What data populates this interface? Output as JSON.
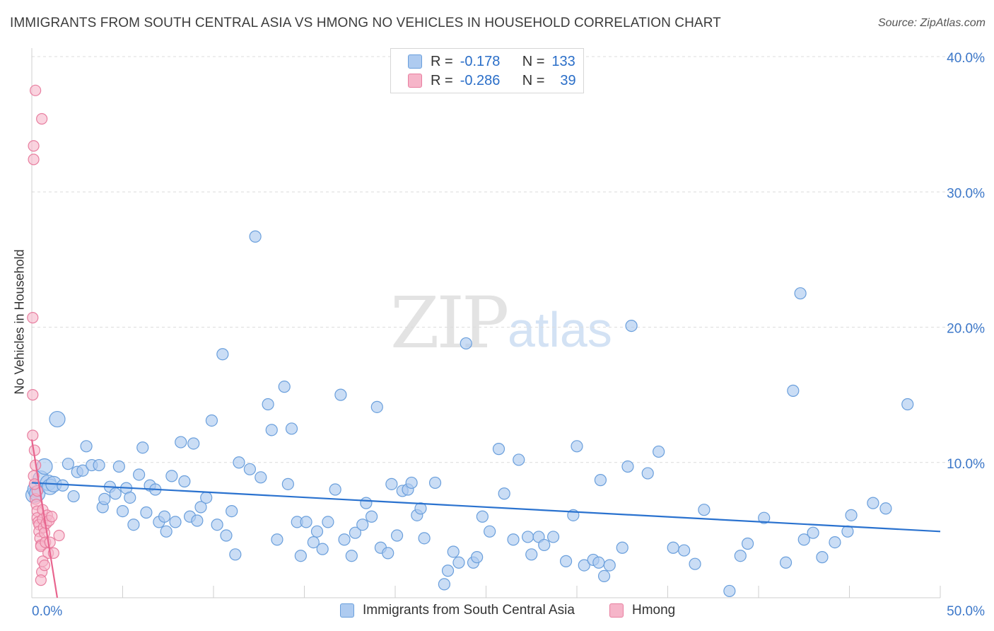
{
  "title": "IMMIGRANTS FROM SOUTH CENTRAL ASIA VS HMONG NO VEHICLES IN HOUSEHOLD CORRELATION CHART",
  "source": "Source: ZipAtlas.com",
  "watermark": {
    "zip": "ZIP",
    "atlas": "atlas"
  },
  "legend": {
    "rows": [
      {
        "r_label": "R =",
        "r_value": "-0.178",
        "n_label": "N =",
        "n_value": "133"
      },
      {
        "r_label": "R =",
        "r_value": "-0.286",
        "n_label": "N =",
        "n_value": "39"
      }
    ]
  },
  "colors": {
    "blue_fill": "#aecbf0",
    "blue_stroke": "#6a9fdc",
    "blue_line": "#2a72cf",
    "pink_fill": "#f6b5c9",
    "pink_stroke": "#e87fa0",
    "pink_line": "#e8648e",
    "axis_text": "#3d78c9",
    "grid": "#dcdcdc"
  },
  "chart_data": {
    "type": "scatter",
    "title": "IMMIGRANTS FROM SOUTH CENTRAL ASIA VS HMONG NO VEHICLES IN HOUSEHOLD CORRELATION CHART",
    "xlabel": "",
    "ylabel": "No Vehicles in Household",
    "xlim": [
      0,
      50
    ],
    "ylim": [
      0,
      40
    ],
    "x_tick_labels": [
      "0.0%",
      "50.0%"
    ],
    "y_ticks": [
      10,
      20,
      30,
      40
    ],
    "y_tick_labels": [
      "10.0%",
      "20.0%",
      "30.0%",
      "40.0%"
    ],
    "grid": true,
    "legend_position": "top-center",
    "series": [
      {
        "name": "Immigrants from South Central Asia",
        "color": "#aecbf0",
        "trend": {
          "x0": 0,
          "y0": 8.5,
          "x1": 50,
          "y1": 4.9
        },
        "points": [
          [
            0.1,
            7.6
          ],
          [
            0.2,
            8.0
          ],
          [
            0.3,
            7.7
          ],
          [
            0.5,
            8.8
          ],
          [
            0.7,
            9.7
          ],
          [
            0.9,
            8.5
          ],
          [
            1.0,
            8.2
          ],
          [
            1.2,
            8.4
          ],
          [
            1.4,
            13.2
          ],
          [
            1.7,
            8.3
          ],
          [
            2.0,
            9.9
          ],
          [
            2.3,
            7.5
          ],
          [
            2.5,
            9.3
          ],
          [
            2.8,
            9.4
          ],
          [
            3.0,
            11.2
          ],
          [
            3.3,
            9.8
          ],
          [
            3.7,
            9.8
          ],
          [
            3.9,
            6.7
          ],
          [
            4.0,
            7.3
          ],
          [
            4.3,
            8.2
          ],
          [
            4.6,
            7.7
          ],
          [
            4.8,
            9.7
          ],
          [
            5.0,
            6.4
          ],
          [
            5.2,
            8.1
          ],
          [
            5.4,
            7.4
          ],
          [
            5.6,
            5.4
          ],
          [
            5.9,
            9.1
          ],
          [
            6.1,
            11.1
          ],
          [
            6.3,
            6.3
          ],
          [
            6.5,
            8.3
          ],
          [
            6.8,
            8.0
          ],
          [
            7.0,
            5.6
          ],
          [
            7.3,
            6.0
          ],
          [
            7.4,
            4.9
          ],
          [
            7.7,
            9.0
          ],
          [
            7.9,
            5.6
          ],
          [
            8.2,
            11.5
          ],
          [
            8.4,
            8.6
          ],
          [
            8.7,
            6.0
          ],
          [
            8.9,
            11.4
          ],
          [
            9.1,
            5.7
          ],
          [
            9.3,
            6.7
          ],
          [
            9.6,
            7.4
          ],
          [
            9.9,
            13.1
          ],
          [
            10.2,
            5.4
          ],
          [
            10.5,
            18.0
          ],
          [
            10.7,
            4.6
          ],
          [
            11.0,
            6.4
          ],
          [
            11.2,
            3.2
          ],
          [
            11.4,
            10.0
          ],
          [
            12.0,
            9.5
          ],
          [
            12.3,
            26.7
          ],
          [
            12.6,
            8.9
          ],
          [
            13.0,
            14.3
          ],
          [
            13.2,
            12.4
          ],
          [
            13.5,
            4.3
          ],
          [
            13.9,
            15.6
          ],
          [
            14.1,
            8.4
          ],
          [
            14.3,
            12.5
          ],
          [
            14.6,
            5.6
          ],
          [
            14.8,
            3.1
          ],
          [
            15.1,
            5.6
          ],
          [
            15.5,
            4.1
          ],
          [
            15.7,
            4.9
          ],
          [
            16.0,
            3.6
          ],
          [
            16.3,
            5.6
          ],
          [
            16.7,
            8.0
          ],
          [
            17.0,
            15.0
          ],
          [
            17.2,
            4.3
          ],
          [
            17.6,
            3.1
          ],
          [
            17.8,
            4.8
          ],
          [
            18.2,
            5.4
          ],
          [
            18.4,
            7.0
          ],
          [
            18.7,
            6.0
          ],
          [
            19.0,
            14.1
          ],
          [
            19.2,
            3.7
          ],
          [
            19.6,
            3.3
          ],
          [
            19.8,
            8.4
          ],
          [
            20.1,
            4.6
          ],
          [
            20.4,
            7.9
          ],
          [
            20.7,
            8.0
          ],
          [
            20.9,
            8.5
          ],
          [
            21.2,
            6.1
          ],
          [
            21.4,
            6.6
          ],
          [
            21.6,
            4.4
          ],
          [
            22.2,
            8.5
          ],
          [
            22.7,
            1.0
          ],
          [
            22.9,
            2.0
          ],
          [
            23.2,
            3.4
          ],
          [
            23.5,
            2.6
          ],
          [
            23.9,
            18.8
          ],
          [
            24.3,
            2.6
          ],
          [
            24.5,
            3.0
          ],
          [
            24.8,
            6.0
          ],
          [
            25.2,
            4.9
          ],
          [
            25.7,
            11.0
          ],
          [
            26.0,
            7.7
          ],
          [
            26.5,
            4.3
          ],
          [
            26.8,
            10.2
          ],
          [
            27.3,
            4.5
          ],
          [
            27.5,
            3.2
          ],
          [
            27.9,
            4.5
          ],
          [
            28.2,
            3.9
          ],
          [
            28.7,
            4.5
          ],
          [
            29.4,
            2.7
          ],
          [
            29.8,
            6.1
          ],
          [
            30.0,
            11.2
          ],
          [
            30.4,
            2.4
          ],
          [
            30.9,
            2.8
          ],
          [
            31.2,
            2.6
          ],
          [
            31.3,
            8.7
          ],
          [
            31.5,
            1.6
          ],
          [
            31.8,
            2.4
          ],
          [
            32.5,
            3.7
          ],
          [
            32.8,
            9.7
          ],
          [
            33.0,
            20.1
          ],
          [
            33.9,
            9.2
          ],
          [
            34.5,
            10.8
          ],
          [
            35.3,
            3.7
          ],
          [
            35.9,
            3.5
          ],
          [
            36.5,
            2.5
          ],
          [
            37.0,
            6.5
          ],
          [
            38.4,
            0.5
          ],
          [
            39.0,
            3.1
          ],
          [
            39.4,
            4.0
          ],
          [
            40.3,
            5.9
          ],
          [
            41.5,
            2.6
          ],
          [
            41.9,
            15.3
          ],
          [
            42.3,
            22.5
          ],
          [
            42.5,
            4.3
          ],
          [
            43.0,
            4.8
          ],
          [
            43.5,
            3.0
          ],
          [
            44.2,
            4.1
          ],
          [
            44.9,
            4.9
          ],
          [
            45.1,
            6.1
          ],
          [
            46.3,
            7.0
          ],
          [
            47.0,
            6.6
          ],
          [
            48.2,
            14.3
          ]
        ]
      },
      {
        "name": "Hmong",
        "color": "#f6b5c9",
        "trend": {
          "x0": 0,
          "y0": 11.7,
          "x1": 1.4,
          "y1": 0
        },
        "points": [
          [
            0.05,
            20.7
          ],
          [
            0.05,
            15.0
          ],
          [
            0.05,
            12.0
          ],
          [
            0.1,
            33.4
          ],
          [
            0.1,
            32.4
          ],
          [
            0.15,
            10.9
          ],
          [
            0.2,
            37.5
          ],
          [
            0.2,
            9.8
          ],
          [
            0.1,
            9.0
          ],
          [
            0.2,
            7.3
          ],
          [
            0.25,
            6.9
          ],
          [
            0.3,
            6.4
          ],
          [
            0.3,
            5.9
          ],
          [
            0.35,
            5.6
          ],
          [
            0.4,
            5.4
          ],
          [
            0.4,
            4.9
          ],
          [
            0.45,
            4.4
          ],
          [
            0.5,
            3.9
          ],
          [
            0.5,
            3.8
          ],
          [
            0.55,
            35.4
          ],
          [
            0.6,
            6.5
          ],
          [
            0.6,
            5.8
          ],
          [
            0.65,
            5.2
          ],
          [
            0.7,
            4.8
          ],
          [
            0.75,
            4.1
          ],
          [
            0.8,
            5.5
          ],
          [
            0.85,
            6.1
          ],
          [
            0.9,
            3.3
          ],
          [
            0.95,
            5.7
          ],
          [
            1.0,
            4.1
          ],
          [
            1.1,
            6.0
          ],
          [
            1.2,
            3.3
          ],
          [
            1.5,
            4.6
          ],
          [
            0.6,
            2.7
          ],
          [
            0.55,
            1.9
          ],
          [
            0.5,
            1.3
          ],
          [
            0.3,
            7.9
          ],
          [
            0.15,
            8.4
          ],
          [
            0.7,
            2.4
          ]
        ]
      }
    ]
  },
  "bottom_legend": [
    {
      "label": "Immigrants from South Central Asia"
    },
    {
      "label": "Hmong"
    }
  ]
}
